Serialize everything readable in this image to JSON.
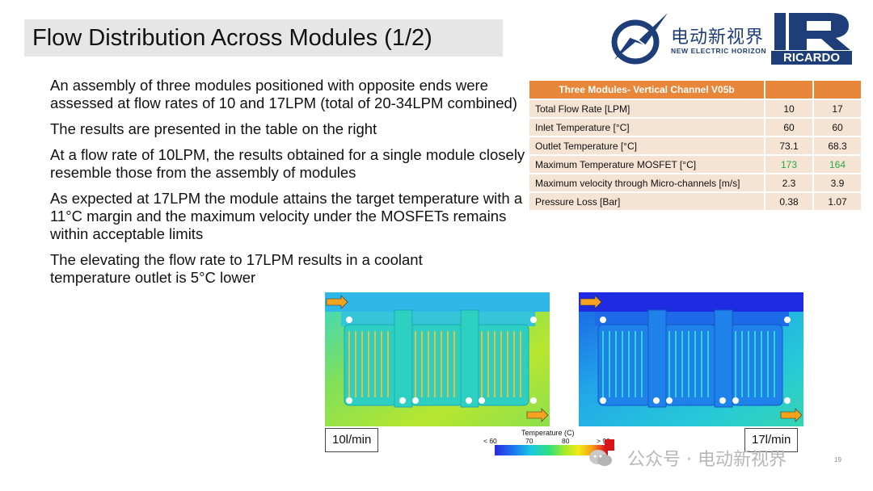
{
  "slide": {
    "title": "Flow Distribution Across Modules (1/2)",
    "bullets": [
      "An assembly of three modules positioned with opposite ends were assessed at flow rates of 10 and 17LPM (total of 20-34LPM combined)",
      "The results are presented in the table on the right",
      "At a flow rate of 10LPM, the results obtained for a single module closely resemble those from the assembly of modules",
      "As expected at 17LPM the module attains the target temperature with a 11°C margin and the maximum velocity under the MOSFETs remains within acceptable limits",
      "The elevating the flow rate to 17LPM results in a coolant temperature outlet is 5°C lower"
    ]
  },
  "logos": {
    "ne_cn": "电动新视界",
    "ne_en": "NEW ELECTRIC HORIZON",
    "ricardo": "RICARDO"
  },
  "table": {
    "header": "Three Modules- Vertical Channel V05b",
    "rows": [
      {
        "label": "Total Flow Rate  [LPM]",
        "v1": "10",
        "v2": "17"
      },
      {
        "label": "Inlet Temperature [°C]",
        "v1": "60",
        "v2": "60"
      },
      {
        "label": "Outlet Temperature [°C]",
        "v1": "73.1",
        "v2": "68.3"
      },
      {
        "label": "Maximum Temperature MOSFET  [°C]",
        "v1": "173",
        "v2": "164"
      },
      {
        "label": "Maximum velocity through Micro-channels  [m/s]",
        "v1": "2.3",
        "v2": "3.9"
      },
      {
        "label": "Pressure Loss  [Bar]",
        "v1": "0.38",
        "v2": "1.07"
      }
    ],
    "highlight_color": "#2aa84a",
    "header_color": "#e8863a"
  },
  "images": {
    "left_label": "10l/min",
    "right_label": "17l/min"
  },
  "legend": {
    "title": "Temperature (C)",
    "ticks": [
      "< 60",
      "70",
      "80",
      "> 90"
    ]
  },
  "watermark": "公众号 · 电动新视界",
  "page_number": "19"
}
